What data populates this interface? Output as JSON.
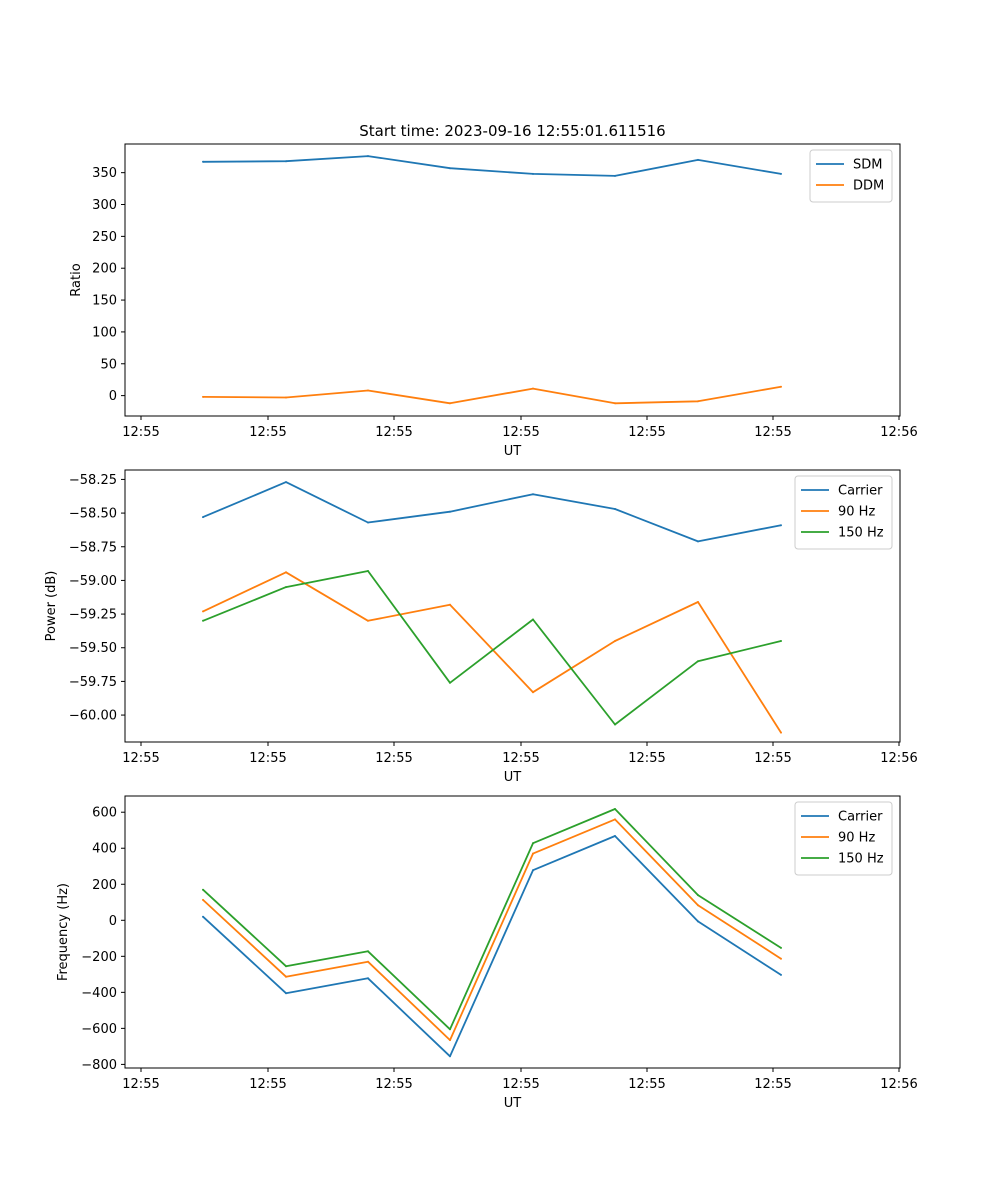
{
  "title": "Start time: 2023-09-16 12:55:01.611516",
  "colors": {
    "blue": "#1f77b4",
    "orange": "#ff7f0e",
    "green": "#2ca02c"
  },
  "chart_data": [
    {
      "type": "line",
      "title": "Start time: 2023-09-16 12:55:01.611516",
      "xlabel": "UT",
      "ylabel": "Ratio",
      "x_tick_labels": [
        "12:55",
        "12:55",
        "12:55",
        "12:55",
        "12:55",
        "12:55",
        "12:56"
      ],
      "y_ticks": [
        0,
        50,
        100,
        150,
        200,
        250,
        300,
        350
      ],
      "y_tick_labels": [
        "0",
        "50",
        "100",
        "150",
        "200",
        "250",
        "300",
        "350"
      ],
      "ylim": [
        -32,
        395
      ],
      "legend_position": "top-right",
      "series": [
        {
          "name": "SDM",
          "color": "#1f77b4",
          "values": [
            367,
            368,
            376,
            357,
            348,
            345,
            370,
            348
          ]
        },
        {
          "name": "DDM",
          "color": "#ff7f0e",
          "values": [
            -2,
            -3,
            8,
            -12,
            11,
            -12,
            -9,
            14
          ]
        }
      ]
    },
    {
      "type": "line",
      "xlabel": "UT",
      "ylabel": "Power (dB)",
      "x_tick_labels": [
        "12:55",
        "12:55",
        "12:55",
        "12:55",
        "12:55",
        "12:55",
        "12:56"
      ],
      "y_ticks": [
        -60.0,
        -59.75,
        -59.5,
        -59.25,
        -59.0,
        -58.75,
        -58.5,
        -58.25
      ],
      "y_tick_labels": [
        "−60.00",
        "−59.75",
        "−59.50",
        "−59.25",
        "−59.00",
        "−58.75",
        "−58.50",
        "−58.25"
      ],
      "ylim": [
        -60.2,
        -58.18
      ],
      "legend_position": "top-right",
      "series": [
        {
          "name": "Carrier",
          "color": "#1f77b4",
          "values": [
            -58.53,
            -58.27,
            -58.57,
            -58.49,
            -58.36,
            -58.47,
            -58.71,
            -58.59
          ]
        },
        {
          "name": "90 Hz",
          "color": "#ff7f0e",
          "values": [
            -59.23,
            -58.94,
            -59.3,
            -59.18,
            -59.83,
            -59.45,
            -59.16,
            -60.13
          ]
        },
        {
          "name": "150 Hz",
          "color": "#2ca02c",
          "values": [
            -59.3,
            -59.05,
            -58.93,
            -59.76,
            -59.29,
            -60.07,
            -59.6,
            -59.45
          ]
        }
      ]
    },
    {
      "type": "line",
      "xlabel": "UT",
      "ylabel": "Frequency (Hz)",
      "x_tick_labels": [
        "12:55",
        "12:55",
        "12:55",
        "12:55",
        "12:55",
        "12:55",
        "12:56"
      ],
      "y_ticks": [
        -800,
        -600,
        -400,
        -200,
        0,
        200,
        400,
        600
      ],
      "y_tick_labels": [
        "−800",
        "−600",
        "−400",
        "−200",
        "0",
        "200",
        "400",
        "600"
      ],
      "ylim": [
        -820,
        690
      ],
      "legend_position": "top-right",
      "series": [
        {
          "name": "Carrier",
          "color": "#1f77b4",
          "values": [
            20,
            -405,
            -322,
            -755,
            278,
            468,
            -6,
            -303
          ]
        },
        {
          "name": "90 Hz",
          "color": "#ff7f0e",
          "values": [
            113,
            -313,
            -230,
            -665,
            370,
            560,
            84,
            -213
          ]
        },
        {
          "name": "150 Hz",
          "color": "#2ca02c",
          "values": [
            170,
            -255,
            -172,
            -605,
            428,
            618,
            140,
            -153
          ]
        }
      ]
    }
  ]
}
